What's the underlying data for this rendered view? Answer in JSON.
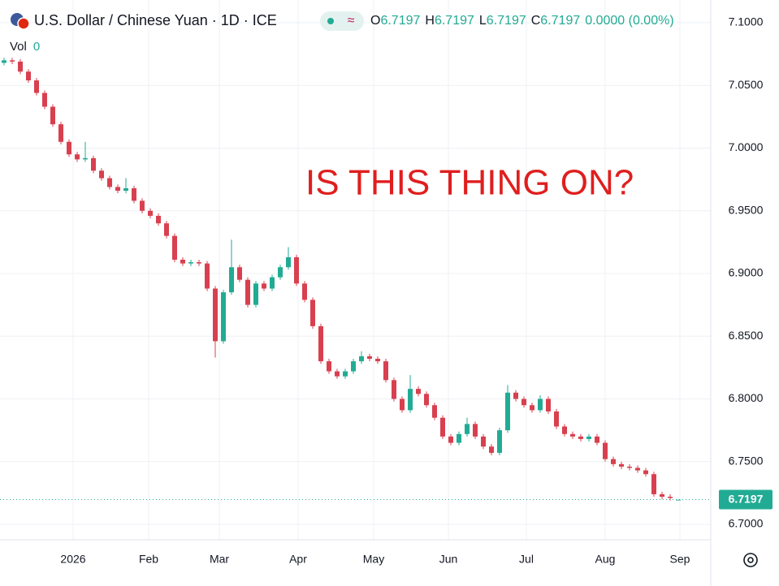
{
  "chart_data": {
    "type": "candlestick",
    "title": "U.S. Dollar / Chinese Yuan · 1D · ICE",
    "ohlc_readout": [
      {
        "label": "O",
        "value": 6.7197
      },
      {
        "label": "H",
        "value": 6.7197
      },
      {
        "label": "L",
        "value": 6.7197
      },
      {
        "label": "C",
        "value": 6.7197
      }
    ],
    "change": "0.0000 (0.00%)",
    "volume": {
      "label": "Vol",
      "value": 0
    },
    "annotation": "IS THIS THING ON?",
    "up_color": "#22ab94",
    "down_color": "#d8404f",
    "grid": true,
    "open": [
      7.068,
      7.07,
      7.069,
      7.061,
      7.054,
      7.044,
      7.033,
      7.019,
      7.005,
      6.995,
      6.991,
      6.992,
      6.982,
      6.976,
      6.969,
      6.966,
      6.968,
      6.958,
      6.95,
      6.946,
      6.94,
      6.93,
      6.911,
      6.908,
      6.909,
      6.908,
      6.888,
      6.846,
      6.885,
      6.905,
      6.895,
      6.875,
      6.892,
      6.888,
      6.897,
      6.905,
      6.913,
      6.892,
      6.879,
      6.858,
      6.83,
      6.822,
      6.818,
      6.822,
      6.83,
      6.834,
      6.832,
      6.83,
      6.815,
      6.8,
      6.791,
      6.808,
      6.804,
      6.795,
      6.785,
      6.77,
      6.765,
      6.772,
      6.78,
      6.77,
      6.762,
      6.757,
      6.775,
      6.805,
      6.8,
      6.795,
      6.791,
      6.8,
      6.79,
      6.778,
      6.772,
      6.77,
      6.768,
      6.77,
      6.765,
      6.752,
      6.748,
      6.746,
      6.745,
      6.743,
      6.74,
      6.724,
      6.722,
      6.7197
    ],
    "high": [
      7.072,
      7.072,
      7.071,
      7.063,
      7.056,
      7.046,
      7.035,
      7.021,
      7.007,
      6.997,
      7.005,
      6.994,
      6.984,
      6.978,
      6.971,
      6.976,
      6.97,
      6.96,
      6.952,
      6.948,
      6.942,
      6.932,
      6.913,
      6.911,
      6.911,
      6.91,
      6.89,
      6.887,
      6.927,
      6.907,
      6.897,
      6.894,
      6.894,
      6.899,
      6.907,
      6.921,
      6.915,
      6.894,
      6.881,
      6.86,
      6.832,
      6.824,
      6.824,
      6.832,
      6.838,
      6.836,
      6.834,
      6.832,
      6.817,
      6.802,
      6.819,
      6.81,
      6.806,
      6.797,
      6.787,
      6.772,
      6.774,
      6.785,
      6.782,
      6.772,
      6.764,
      6.777,
      6.811,
      6.807,
      6.802,
      6.797,
      6.803,
      6.802,
      6.792,
      6.78,
      6.774,
      6.772,
      6.772,
      6.772,
      6.767,
      6.754,
      6.75,
      6.748,
      6.747,
      6.745,
      6.742,
      6.726,
      6.724,
      6.7197
    ],
    "low": [
      7.066,
      7.067,
      7.059,
      7.052,
      7.042,
      7.031,
      7.017,
      7.003,
      6.993,
      6.989,
      6.989,
      6.98,
      6.974,
      6.967,
      6.964,
      6.964,
      6.956,
      6.948,
      6.944,
      6.938,
      6.928,
      6.909,
      6.906,
      6.906,
      6.906,
      6.886,
      6.833,
      6.844,
      6.883,
      6.893,
      6.873,
      6.873,
      6.886,
      6.886,
      6.895,
      6.903,
      6.89,
      6.877,
      6.856,
      6.828,
      6.82,
      6.816,
      6.816,
      6.82,
      6.828,
      6.83,
      6.828,
      6.813,
      6.798,
      6.789,
      6.789,
      6.802,
      6.793,
      6.783,
      6.768,
      6.763,
      6.763,
      6.77,
      6.768,
      6.76,
      6.755,
      6.755,
      6.773,
      6.798,
      6.793,
      6.789,
      6.789,
      6.788,
      6.776,
      6.77,
      6.768,
      6.766,
      6.766,
      6.763,
      6.75,
      6.746,
      6.744,
      6.743,
      6.741,
      6.738,
      6.722,
      6.72,
      6.719,
      6.7197
    ],
    "close": [
      7.07,
      7.069,
      7.061,
      7.054,
      7.044,
      7.033,
      7.019,
      7.005,
      6.995,
      6.991,
      6.992,
      6.982,
      6.976,
      6.969,
      6.966,
      6.968,
      6.958,
      6.95,
      6.946,
      6.94,
      6.93,
      6.911,
      6.908,
      6.909,
      6.908,
      6.888,
      6.846,
      6.885,
      6.905,
      6.895,
      6.875,
      6.892,
      6.888,
      6.897,
      6.905,
      6.913,
      6.892,
      6.879,
      6.858,
      6.83,
      6.822,
      6.818,
      6.822,
      6.83,
      6.834,
      6.832,
      6.83,
      6.815,
      6.8,
      6.791,
      6.808,
      6.804,
      6.795,
      6.785,
      6.77,
      6.765,
      6.772,
      6.78,
      6.77,
      6.762,
      6.757,
      6.775,
      6.805,
      6.8,
      6.795,
      6.791,
      6.8,
      6.79,
      6.778,
      6.772,
      6.77,
      6.768,
      6.77,
      6.765,
      6.752,
      6.748,
      6.746,
      6.745,
      6.743,
      6.74,
      6.724,
      6.722,
      6.721,
      6.7197
    ],
    "last_price": {
      "value": 6.7197,
      "label": "6.7197"
    },
    "xlim": [
      -0.5,
      86.5
    ],
    "xticks": [
      {
        "value": 8.5,
        "label": "2026"
      },
      {
        "value": 17.8,
        "label": "Feb"
      },
      {
        "value": 26.5,
        "label": "Mar"
      },
      {
        "value": 36.2,
        "label": "Apr"
      },
      {
        "value": 45.5,
        "label": "May"
      },
      {
        "value": 54.7,
        "label": "Jun"
      },
      {
        "value": 64.3,
        "label": "Jul"
      },
      {
        "value": 74,
        "label": "Aug"
      },
      {
        "value": 83.2,
        "label": "Sep"
      }
    ],
    "ylim": [
      6.6877,
      7.1181
    ],
    "yticks": [
      {
        "value": 6.7,
        "label": "6.7000"
      },
      {
        "value": 6.75,
        "label": "6.7500"
      },
      {
        "value": 6.8,
        "label": "6.8000"
      },
      {
        "value": 6.85,
        "label": "6.8500"
      },
      {
        "value": 6.9,
        "label": "6.9000"
      },
      {
        "value": 6.95,
        "label": "6.9500"
      },
      {
        "value": 7,
        "label": "7.0000"
      },
      {
        "value": 7.05,
        "label": "7.0500"
      },
      {
        "value": 7.1,
        "label": "7.1000"
      }
    ]
  }
}
